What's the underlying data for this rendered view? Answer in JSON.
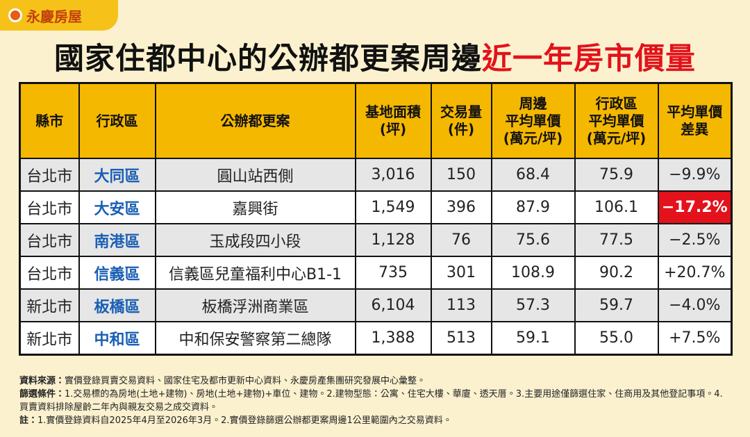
{
  "logo": "永慶房屋",
  "title": {
    "main": "國家住都中心的公辦都更案周邊",
    "highlight": "近一年房市價量"
  },
  "table": {
    "header": [
      "縣市",
      "行政區",
      "公辦都更案",
      "基地面積\n(坪)",
      "交易量\n(件)",
      "周邊\n平均單價\n(萬元/坪)",
      "行政區\n平均單價\n(萬元/坪)",
      "平均單價\n差異"
    ],
    "rows": [
      [
        "台北市",
        "大同區",
        "圓山站西側",
        "3,016",
        "150",
        "68.4",
        "75.9",
        "−9.9%"
      ],
      [
        "台北市",
        "大安區",
        "嘉興街",
        "1,549",
        "396",
        "87.9",
        "106.1",
        "−17.2%"
      ],
      [
        "台北市",
        "南港區",
        "玉成段四小段",
        "1,128",
        "76",
        "75.6",
        "77.5",
        "−2.5%"
      ],
      [
        "台北市",
        "信義區",
        "信義區兒童福利中心B1-1",
        "735",
        "301",
        "108.9",
        "90.2",
        "+20.7%"
      ],
      [
        "新北市",
        "板橋區",
        "板橋浮洲商業區",
        "6,104",
        "113",
        "57.3",
        "59.7",
        "−4.0%"
      ],
      [
        "新北市",
        "中和區",
        "中和保安警察第二總隊",
        "1,388",
        "513",
        "59.1",
        "55.0",
        "+7.5%"
      ]
    ],
    "highlight": {
      "row": 1,
      "column": 7,
      "color": "#e3121b"
    }
  },
  "notes": [
    {
      "label": "資料來源：",
      "text": "實價登錄買賣交易資料、國家住宅及都市更新中心資料、永慶房產集團研究發展中心彙整。"
    },
    {
      "label": "篩選條件：",
      "text": "1.交易標的為房地(土地+建物)、房地(土地+建物)+車位、建物。2.建物型態：公寓、住宅大樓、華廈、透天厝。3.主要用途僅篩選住家、住商用及其他登記事項。4.買賣資料排除屋齡二年內與親友交易之成交資料。"
    },
    {
      "label": "註：",
      "text": "1.實價登錄資料自2025年4月至2026年3月。2.實價登錄篩選公辦都更案周邊1公里範圍內之交易資料。"
    }
  ]
}
